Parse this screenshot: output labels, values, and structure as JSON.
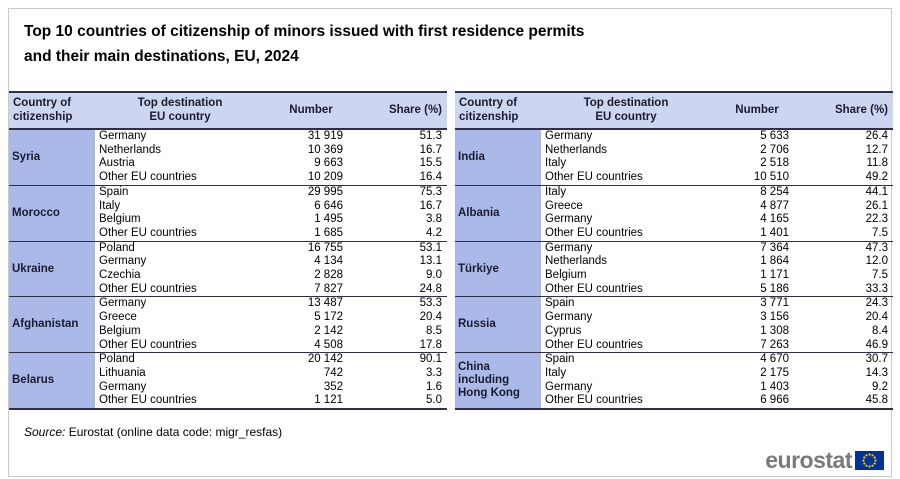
{
  "title": {
    "line1": "Top 10 countries of citizenship of minors issued with first residence permits",
    "line2": "and their main destinations, EU, 2024"
  },
  "source": {
    "label": "Source:",
    "text": "Eurostat (online data code: migr_resfas)"
  },
  "logo": {
    "text": "eurostat",
    "flag_icon": "eu-flag-icon"
  },
  "colors": {
    "header_bg": "#ccd6f0",
    "citizenship_bg": "#aab9e8",
    "border_dark": "#2f2f49",
    "logo_gray": "#7a7a7a",
    "eu_blue": "#003399",
    "star_yellow": "#ffcc00"
  },
  "chart_data": [
    {
      "type": "table",
      "columns": [
        "Country of\ncitizenship",
        "Top destination\nEU country",
        "Number",
        "Share (%)"
      ],
      "groups": [
        {
          "citizenship": "Syria",
          "rows": [
            {
              "destination": "Germany",
              "number": "31 919",
              "share": "51.3"
            },
            {
              "destination": "Netherlands",
              "number": "10 369",
              "share": "16.7"
            },
            {
              "destination": "Austria",
              "number": "9 663",
              "share": "15.5"
            },
            {
              "destination": "Other EU countries",
              "number": "10 209",
              "share": "16.4"
            }
          ]
        },
        {
          "citizenship": "Morocco",
          "rows": [
            {
              "destination": "Spain",
              "number": "29 995",
              "share": "75.3"
            },
            {
              "destination": "Italy",
              "number": "6 646",
              "share": "16.7"
            },
            {
              "destination": "Belgium",
              "number": "1 495",
              "share": "3.8"
            },
            {
              "destination": "Other EU countries",
              "number": "1 685",
              "share": "4.2"
            }
          ]
        },
        {
          "citizenship": "Ukraine",
          "rows": [
            {
              "destination": "Poland",
              "number": "16 755",
              "share": "53.1"
            },
            {
              "destination": "Germany",
              "number": "4 134",
              "share": "13.1"
            },
            {
              "destination": "Czechia",
              "number": "2 828",
              "share": "9.0"
            },
            {
              "destination": "Other EU countries",
              "number": "7 827",
              "share": "24.8"
            }
          ]
        },
        {
          "citizenship": "Afghanistan",
          "rows": [
            {
              "destination": "Germany",
              "number": "13 487",
              "share": "53.3"
            },
            {
              "destination": "Greece",
              "number": "5 172",
              "share": "20.4"
            },
            {
              "destination": "Belgium",
              "number": "2 142",
              "share": "8.5"
            },
            {
              "destination": "Other EU countries",
              "number": "4 508",
              "share": "17.8"
            }
          ]
        },
        {
          "citizenship": "Belarus",
          "rows": [
            {
              "destination": "Poland",
              "number": "20 142",
              "share": "90.1"
            },
            {
              "destination": "Lithuania",
              "number": "742",
              "share": "3.3"
            },
            {
              "destination": "Germany",
              "number": "352",
              "share": "1.6"
            },
            {
              "destination": "Other EU countries",
              "number": "1 121",
              "share": "5.0"
            }
          ]
        }
      ]
    },
    {
      "type": "table",
      "columns": [
        "Country of\ncitizenship",
        "Top destination\nEU country",
        "Number",
        "Share (%)"
      ],
      "groups": [
        {
          "citizenship": "India",
          "rows": [
            {
              "destination": "Germany",
              "number": "5 633",
              "share": "26.4"
            },
            {
              "destination": "Netherlands",
              "number": "2 706",
              "share": "12.7"
            },
            {
              "destination": "Italy",
              "number": "2 518",
              "share": "11.8"
            },
            {
              "destination": "Other EU countries",
              "number": "10 510",
              "share": "49.2"
            }
          ]
        },
        {
          "citizenship": "Albania",
          "rows": [
            {
              "destination": "Italy",
              "number": "8 254",
              "share": "44.1"
            },
            {
              "destination": "Greece",
              "number": "4 877",
              "share": "26.1"
            },
            {
              "destination": "Germany",
              "number": "4 165",
              "share": "22.3"
            },
            {
              "destination": "Other EU countries",
              "number": "1 401",
              "share": "7.5"
            }
          ]
        },
        {
          "citizenship": "Türkiye",
          "rows": [
            {
              "destination": "Germany",
              "number": "7 364",
              "share": "47.3"
            },
            {
              "destination": "Netherlands",
              "number": "1 864",
              "share": "12.0"
            },
            {
              "destination": "Belgium",
              "number": "1 171",
              "share": "7.5"
            },
            {
              "destination": "Other EU countries",
              "number": "5 186",
              "share": "33.3"
            }
          ]
        },
        {
          "citizenship": "Russia",
          "rows": [
            {
              "destination": "Spain",
              "number": "3 771",
              "share": "24.3"
            },
            {
              "destination": "Germany",
              "number": "3 156",
              "share": "20.4"
            },
            {
              "destination": "Cyprus",
              "number": "1 308",
              "share": "8.4"
            },
            {
              "destination": "Other EU countries",
              "number": "7 263",
              "share": "46.9"
            }
          ]
        },
        {
          "citizenship": "China including Hong Kong",
          "rows": [
            {
              "destination": "Spain",
              "number": "4 670",
              "share": "30.7"
            },
            {
              "destination": "Italy",
              "number": "2 175",
              "share": "14.3"
            },
            {
              "destination": "Germany",
              "number": "1 403",
              "share": "9.2"
            },
            {
              "destination": "Other EU countries",
              "number": "6 966",
              "share": "45.8"
            }
          ]
        }
      ]
    }
  ]
}
